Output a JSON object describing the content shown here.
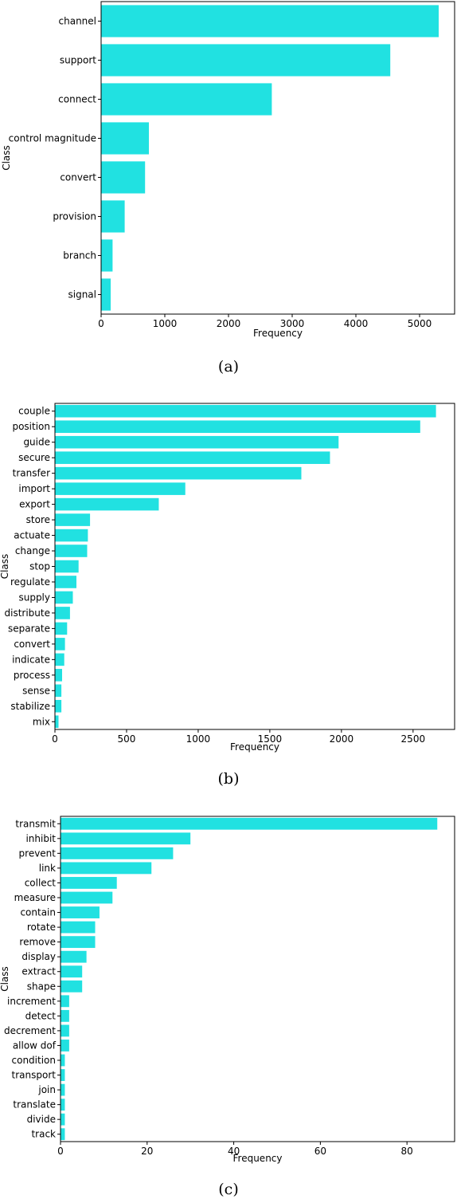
{
  "bar_color": "#21e1e1",
  "chart_data": [
    {
      "type": "bar",
      "orientation": "horizontal",
      "caption": "(a)",
      "xlabel": "Frequency",
      "ylabel": "Class",
      "xlim": [
        0,
        5550
      ],
      "xticks": [
        0,
        1000,
        2000,
        3000,
        4000,
        5000
      ],
      "categories": [
        "channel",
        "support",
        "connect",
        "control magnitude",
        "convert",
        "provision",
        "branch",
        "signal"
      ],
      "values": [
        5300,
        4540,
        2680,
        750,
        690,
        370,
        180,
        150
      ]
    },
    {
      "type": "bar",
      "orientation": "horizontal",
      "caption": "(b)",
      "xlabel": "Frequency",
      "ylabel": "Class",
      "xlim": [
        0,
        2790
      ],
      "xticks": [
        0,
        500,
        1000,
        1500,
        2000,
        2500
      ],
      "categories": [
        "couple",
        "position",
        "guide",
        "secure",
        "transfer",
        "import",
        "export",
        "store",
        "actuate",
        "change",
        "stop",
        "regulate",
        "supply",
        "distribute",
        "separate",
        "convert",
        "indicate",
        "process",
        "sense",
        "stabilize",
        "mix"
      ],
      "values": [
        2660,
        2550,
        1980,
        1920,
        1720,
        910,
        725,
        245,
        230,
        225,
        165,
        150,
        125,
        105,
        85,
        70,
        65,
        50,
        45,
        45,
        25
      ]
    },
    {
      "type": "bar",
      "orientation": "horizontal",
      "caption": "(c)",
      "xlabel": "Frequency",
      "ylabel": "Class",
      "xlim": [
        0,
        91
      ],
      "xticks": [
        0,
        20,
        40,
        60,
        80
      ],
      "categories": [
        "transmit",
        "inhibit",
        "prevent",
        "link",
        "collect",
        "measure",
        "contain",
        "rotate",
        "remove",
        "display",
        "extract",
        "shape",
        "increment",
        "detect",
        "decrement",
        "allow dof",
        "condition",
        "transport",
        "join",
        "translate",
        "divide",
        "track"
      ],
      "values": [
        87,
        30,
        26,
        21,
        13,
        12,
        9,
        8,
        8,
        6,
        5,
        5,
        2,
        2,
        2,
        2,
        1,
        1,
        1,
        1,
        1,
        1
      ]
    }
  ]
}
